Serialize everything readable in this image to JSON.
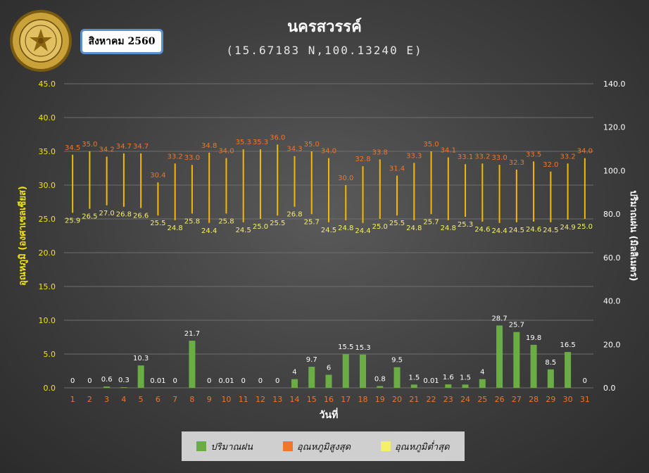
{
  "header": {
    "title": "นครสวรรค์",
    "subtitle": "(15.67183 N,100.13240 E)",
    "month_label": "สิงหาคม 2560"
  },
  "colors": {
    "rain": "#6aad45",
    "max_temp": "#f0762b",
    "min_temp": "#f5f06a",
    "range_bar": "#f4b800",
    "axis_text": "#f2e600",
    "day_label": "#f0762b"
  },
  "legend": {
    "rain": "ปริมาณฝน",
    "max_temp": "อุณหภูมิสูงสุด",
    "min_temp": "อุณหภูมิต่ำสุด"
  },
  "chart_data": {
    "type": "bar",
    "xlabel": "วันที่",
    "ylabel": "อุณหภูมิ (องศาเซลเซียส)",
    "y2label": "ปริมาณฝน (มิลลิเมตร)",
    "ylim": [
      0,
      45
    ],
    "y2lim": [
      0,
      140
    ],
    "y_ticks": [
      "0.0",
      "5.0",
      "10.0",
      "15.0",
      "20.0",
      "25.0",
      "30.0",
      "35.0",
      "40.0",
      "45.0"
    ],
    "y2_ticks": [
      "0.0",
      "20.0",
      "40.0",
      "60.0",
      "80.0",
      "100.0",
      "120.0",
      "140.0"
    ],
    "categories": [
      "1",
      "2",
      "3",
      "4",
      "5",
      "6",
      "7",
      "8",
      "9",
      "10",
      "11",
      "12",
      "13",
      "14",
      "15",
      "16",
      "17",
      "18",
      "19",
      "20",
      "21",
      "22",
      "23",
      "24",
      "25",
      "26",
      "27",
      "28",
      "29",
      "30",
      "31"
    ],
    "series": [
      {
        "name": "ปริมาณฝน",
        "axis": "right",
        "values": [
          0,
          0,
          0.6,
          0.3,
          10.3,
          0.01,
          0,
          21.7,
          0,
          0.01,
          0,
          0,
          0,
          4,
          9.7,
          6,
          15.5,
          15.3,
          0.8,
          9.5,
          1.5,
          0.01,
          1.6,
          1.5,
          4,
          28.7,
          25.7,
          19.8,
          8.5,
          16.5,
          0
        ],
        "labels": [
          "0",
          "0",
          "0.6",
          "0.3",
          "10.3",
          "0.01",
          "0",
          "21.7",
          "0",
          "0.01",
          "0",
          "0",
          "0",
          "4",
          "9.7",
          "6",
          "15.5",
          "15.3",
          "0.8",
          "9.5",
          "1.5",
          "0.01",
          "1.6",
          "1.5",
          "4",
          "28.7",
          "25.7",
          "19.8",
          "8.5",
          "16.5",
          "0"
        ]
      },
      {
        "name": "อุณหภูมิสูงสุด",
        "axis": "left",
        "values": [
          34.5,
          35.0,
          34.2,
          34.7,
          34.7,
          30.4,
          33.2,
          33.0,
          34.8,
          34.0,
          35.3,
          35.3,
          36.0,
          34.3,
          35.0,
          34.0,
          30.0,
          32.8,
          33.8,
          31.4,
          33.3,
          35.0,
          34.1,
          33.1,
          33.2,
          33.0,
          32.3,
          33.5,
          32.0,
          33.2,
          34.0
        ],
        "labels": [
          "34.5",
          "35.0",
          "34.2",
          "34.7",
          "34.7",
          "30.4",
          "33.2",
          "33.0",
          "34.8",
          "34.0",
          "35.3",
          "35.3",
          "36.0",
          "34.3",
          "35.0",
          "34.0",
          "30.0",
          "32.8",
          "33.8",
          "31.4",
          "33.3",
          "35.0",
          "34.1",
          "33.1",
          "33.2",
          "33.0",
          "32.3",
          "33.5",
          "32.0",
          "33.2",
          "34.0"
        ]
      },
      {
        "name": "อุณหภูมิต่ำสุด",
        "axis": "left",
        "values": [
          25.9,
          26.5,
          27.0,
          26.8,
          26.6,
          25.5,
          24.8,
          25.8,
          24.4,
          25.8,
          24.5,
          25.0,
          25.5,
          26.8,
          25.7,
          24.5,
          24.8,
          24.4,
          25.0,
          25.5,
          24.8,
          25.7,
          24.8,
          25.3,
          24.6,
          24.4,
          24.5,
          24.6,
          24.5,
          24.9,
          25.0
        ],
        "labels": [
          "25.9",
          "26.5",
          "27.0",
          "26.8",
          "26.6",
          "25.5",
          "24.8",
          "25.8",
          "24.4",
          "25.8",
          "24.5",
          "25.0",
          "25.5",
          "26.8",
          "25.7",
          "24.5",
          "24.8",
          "24.4",
          "25.0",
          "25.5",
          "24.8",
          "25.7",
          "24.8",
          "25.3",
          "24.6",
          "24.4",
          "24.5",
          "24.6",
          "24.5",
          "24.9",
          "25.0"
        ]
      }
    ]
  }
}
